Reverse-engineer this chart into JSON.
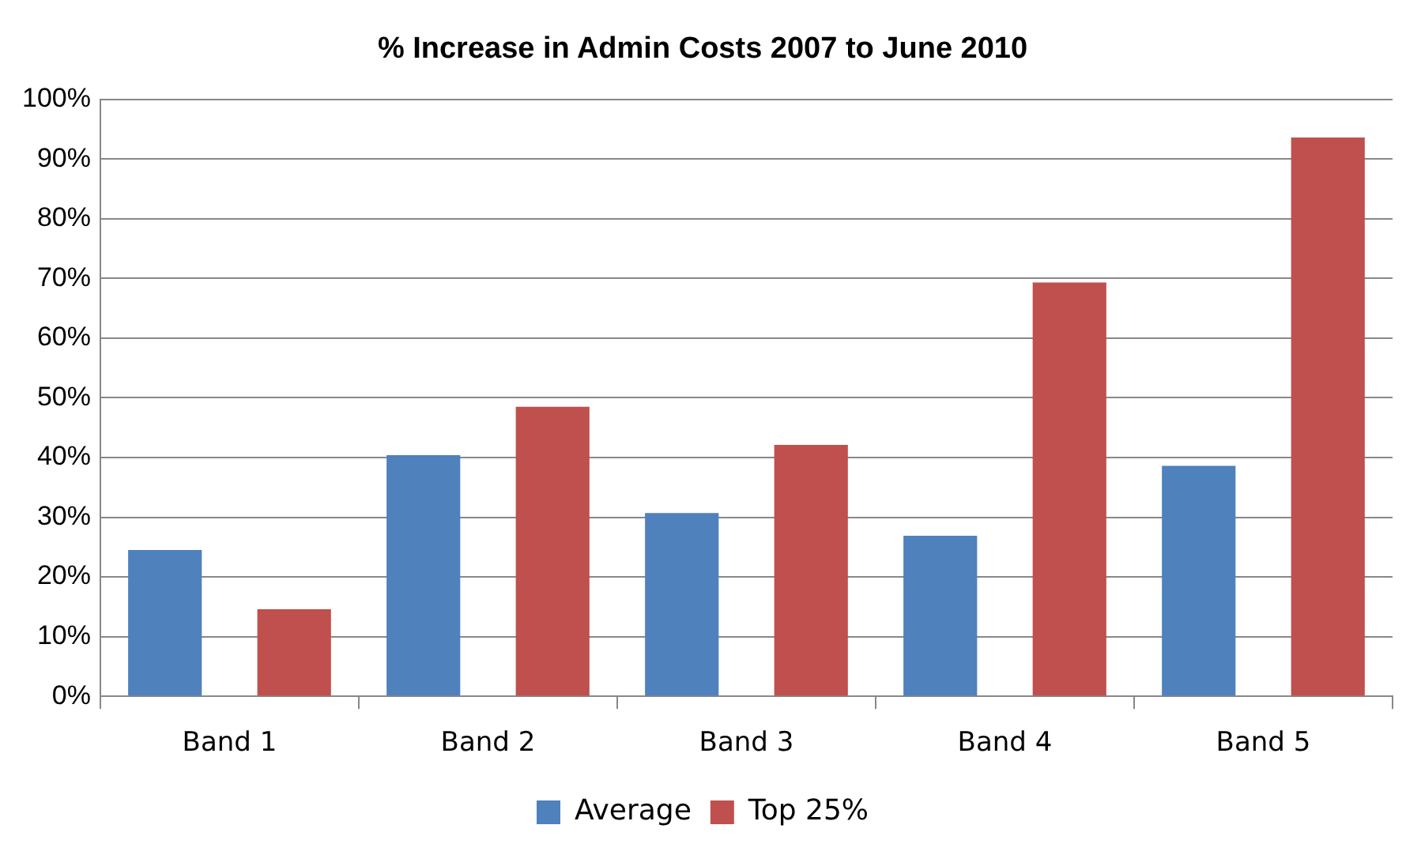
{
  "chart_data": {
    "type": "bar",
    "title": "% Increase in Admin Costs 2007 to June 2010",
    "categories": [
      "Band 1",
      "Band 2",
      "Band 3",
      "Band 4",
      "Band 5"
    ],
    "series": [
      {
        "name": "Average",
        "color": "#4f81bd",
        "values": [
          24.5,
          40.4,
          30.7,
          26.9,
          38.6
        ]
      },
      {
        "name": "Top 25%",
        "color": "#c0504d",
        "values": [
          14.6,
          48.5,
          42.1,
          69.3,
          93.6
        ]
      }
    ],
    "ylim": [
      0,
      100
    ],
    "yticks": [
      {
        "value": 0,
        "label": "0%"
      },
      {
        "value": 10,
        "label": "10%"
      },
      {
        "value": 20,
        "label": "20%"
      },
      {
        "value": 30,
        "label": "30%"
      },
      {
        "value": 40,
        "label": "40%"
      },
      {
        "value": 50,
        "label": "50%"
      },
      {
        "value": 60,
        "label": "60%"
      },
      {
        "value": 70,
        "label": "70%"
      },
      {
        "value": 80,
        "label": "80%"
      },
      {
        "value": 90,
        "label": "90%"
      },
      {
        "value": 100,
        "label": "100%"
      }
    ],
    "grid": "y",
    "legend": "bottom"
  }
}
